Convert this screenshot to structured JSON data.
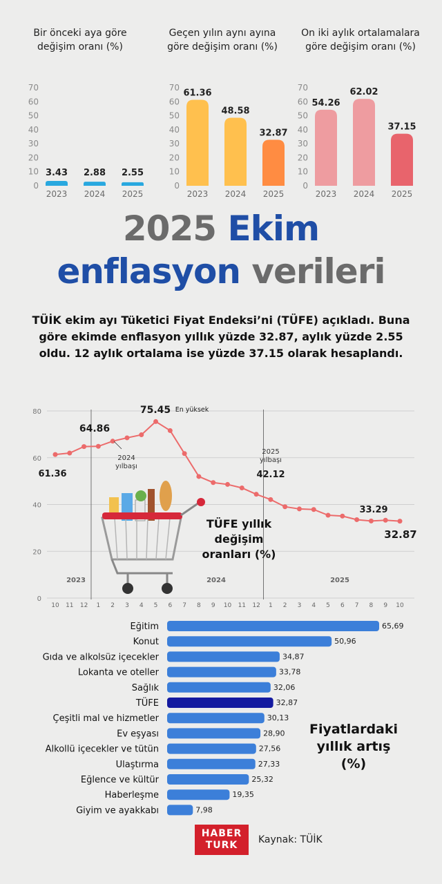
{
  "mini_charts": [
    {
      "title": "Bir önceki aya göre değişim oranı (%)",
      "chart_data": {
        "type": "bar",
        "categories": [
          "2023",
          "2024",
          "2025"
        ],
        "values": [
          3.43,
          2.88,
          2.55
        ],
        "value_labels": [
          "3.43",
          "2.88",
          "2.55"
        ],
        "ylim": [
          0,
          70
        ],
        "yticks": [
          "0",
          "10",
          "20",
          "30",
          "40",
          "50",
          "60",
          "70"
        ],
        "colors": [
          "#29a8df",
          "#29a8df",
          "#29a8df"
        ],
        "grid": false
      }
    },
    {
      "title": "Geçen yılın aynı ayına göre değişim oranı (%)",
      "chart_data": {
        "type": "bar",
        "categories": [
          "2023",
          "2024",
          "2025"
        ],
        "values": [
          61.36,
          48.58,
          32.87
        ],
        "value_labels": [
          "61.36",
          "48.58",
          "32.87"
        ],
        "ylim": [
          0,
          70
        ],
        "yticks": [
          "0",
          "10",
          "20",
          "30",
          "40",
          "50",
          "60",
          "70"
        ],
        "colors": [
          "#ffc04e",
          "#ffc04e",
          "#ff8c42"
        ],
        "grid": false
      }
    },
    {
      "title": "On iki aylık ortalamalara göre değişim oranı (%)",
      "chart_data": {
        "type": "bar",
        "categories": [
          "2023",
          "2024",
          "2025"
        ],
        "values": [
          54.26,
          62.02,
          37.15
        ],
        "value_labels": [
          "54.26",
          "62.02",
          "37.15"
        ],
        "ylim": [
          0,
          70
        ],
        "yticks": [
          "0",
          "10",
          "20",
          "30",
          "40",
          "50",
          "60",
          "70"
        ],
        "colors": [
          "#ee9ca0",
          "#ee9ca0",
          "#e8646c"
        ],
        "grid": false
      }
    }
  ],
  "headline": {
    "part1": "2025",
    "part2": "Ekim",
    "part3": "enflasyon",
    "part4": "verileri"
  },
  "intro": "TÜİK ekim ayı Tüketici Fiyat Endeksi’ni (TÜFE) açıkladı. Buna göre ekimde enflasyon yıllık yüzde 32.87, aylık yüzde 2.55 oldu. 12 aylık ortalama ise yüzde 37.15 olarak hesaplandı.",
  "line_chart": {
    "chart_data": {
      "type": "line",
      "title": "TÜFE yıllık değişim oranları (%)",
      "x": [
        "10",
        "11",
        "12",
        "1",
        "2",
        "3",
        "4",
        "5",
        "6",
        "7",
        "8",
        "9",
        "10",
        "11",
        "12",
        "1",
        "2",
        "3",
        "4",
        "5",
        "6",
        "7",
        "8",
        "9",
        "10"
      ],
      "values": [
        61.36,
        61.98,
        64.77,
        64.86,
        67.07,
        68.5,
        69.8,
        75.45,
        71.6,
        61.78,
        51.97,
        49.38,
        48.58,
        47.09,
        44.38,
        42.12,
        39.05,
        38.1,
        37.86,
        35.41,
        35.05,
        33.52,
        32.95,
        33.29,
        32.87
      ],
      "ylim": [
        0,
        80
      ],
      "yticks": [
        "0",
        "20",
        "40",
        "60",
        "80"
      ],
      "year_labels": [
        "2023",
        "2024",
        "2025"
      ],
      "line_color": "#ec6b6b",
      "grid": true,
      "annotations": [
        {
          "text": "61.36"
        },
        {
          "text": "64.86"
        },
        {
          "text": "75.45"
        },
        {
          "text": "En yüksek"
        },
        {
          "text": "2024 yılbaşı"
        },
        {
          "text": "2025 yılbaşı"
        },
        {
          "text": "42.12"
        },
        {
          "text": "33.29"
        },
        {
          "text": "32.87"
        }
      ]
    }
  },
  "bar_chart": {
    "chart_data": {
      "type": "bar",
      "orientation": "horizontal",
      "title": "Fiyatlardaki yıllık artış (%)",
      "categories": [
        "Eğitim",
        "Konut",
        "Gıda ve alkolsüz içecekler",
        "Lokanta ve oteller",
        "Sağlık",
        "TÜFE",
        "Çeşitli mal ve hizmetler",
        "Ev eşyası",
        "Alkollü içecekler ve tütün",
        "Ulaştırma",
        "Eğlence ve kültür",
        "Haberleşme",
        "Giyim ve ayakkabı"
      ],
      "values": [
        65.69,
        50.96,
        34.87,
        33.78,
        32.06,
        32.87,
        30.13,
        28.9,
        27.56,
        27.33,
        25.32,
        19.35,
        7.98
      ],
      "value_labels": [
        "65,69",
        "50,96",
        "34,87",
        "33,78",
        "32,06",
        "32,87",
        "30,13",
        "28,90",
        "27,56",
        "27,33",
        "25,32",
        "19,35",
        "7,98"
      ],
      "colors": {
        "default": "#3c7fd9",
        "highlight": "#141aa0"
      },
      "highlight": "TÜFE"
    }
  },
  "footer": {
    "logo_line1": "HABER",
    "logo_line2": "TURK",
    "source": "Kaynak: TÜİK"
  },
  "icons": [
    "shopping-cart-icon"
  ]
}
